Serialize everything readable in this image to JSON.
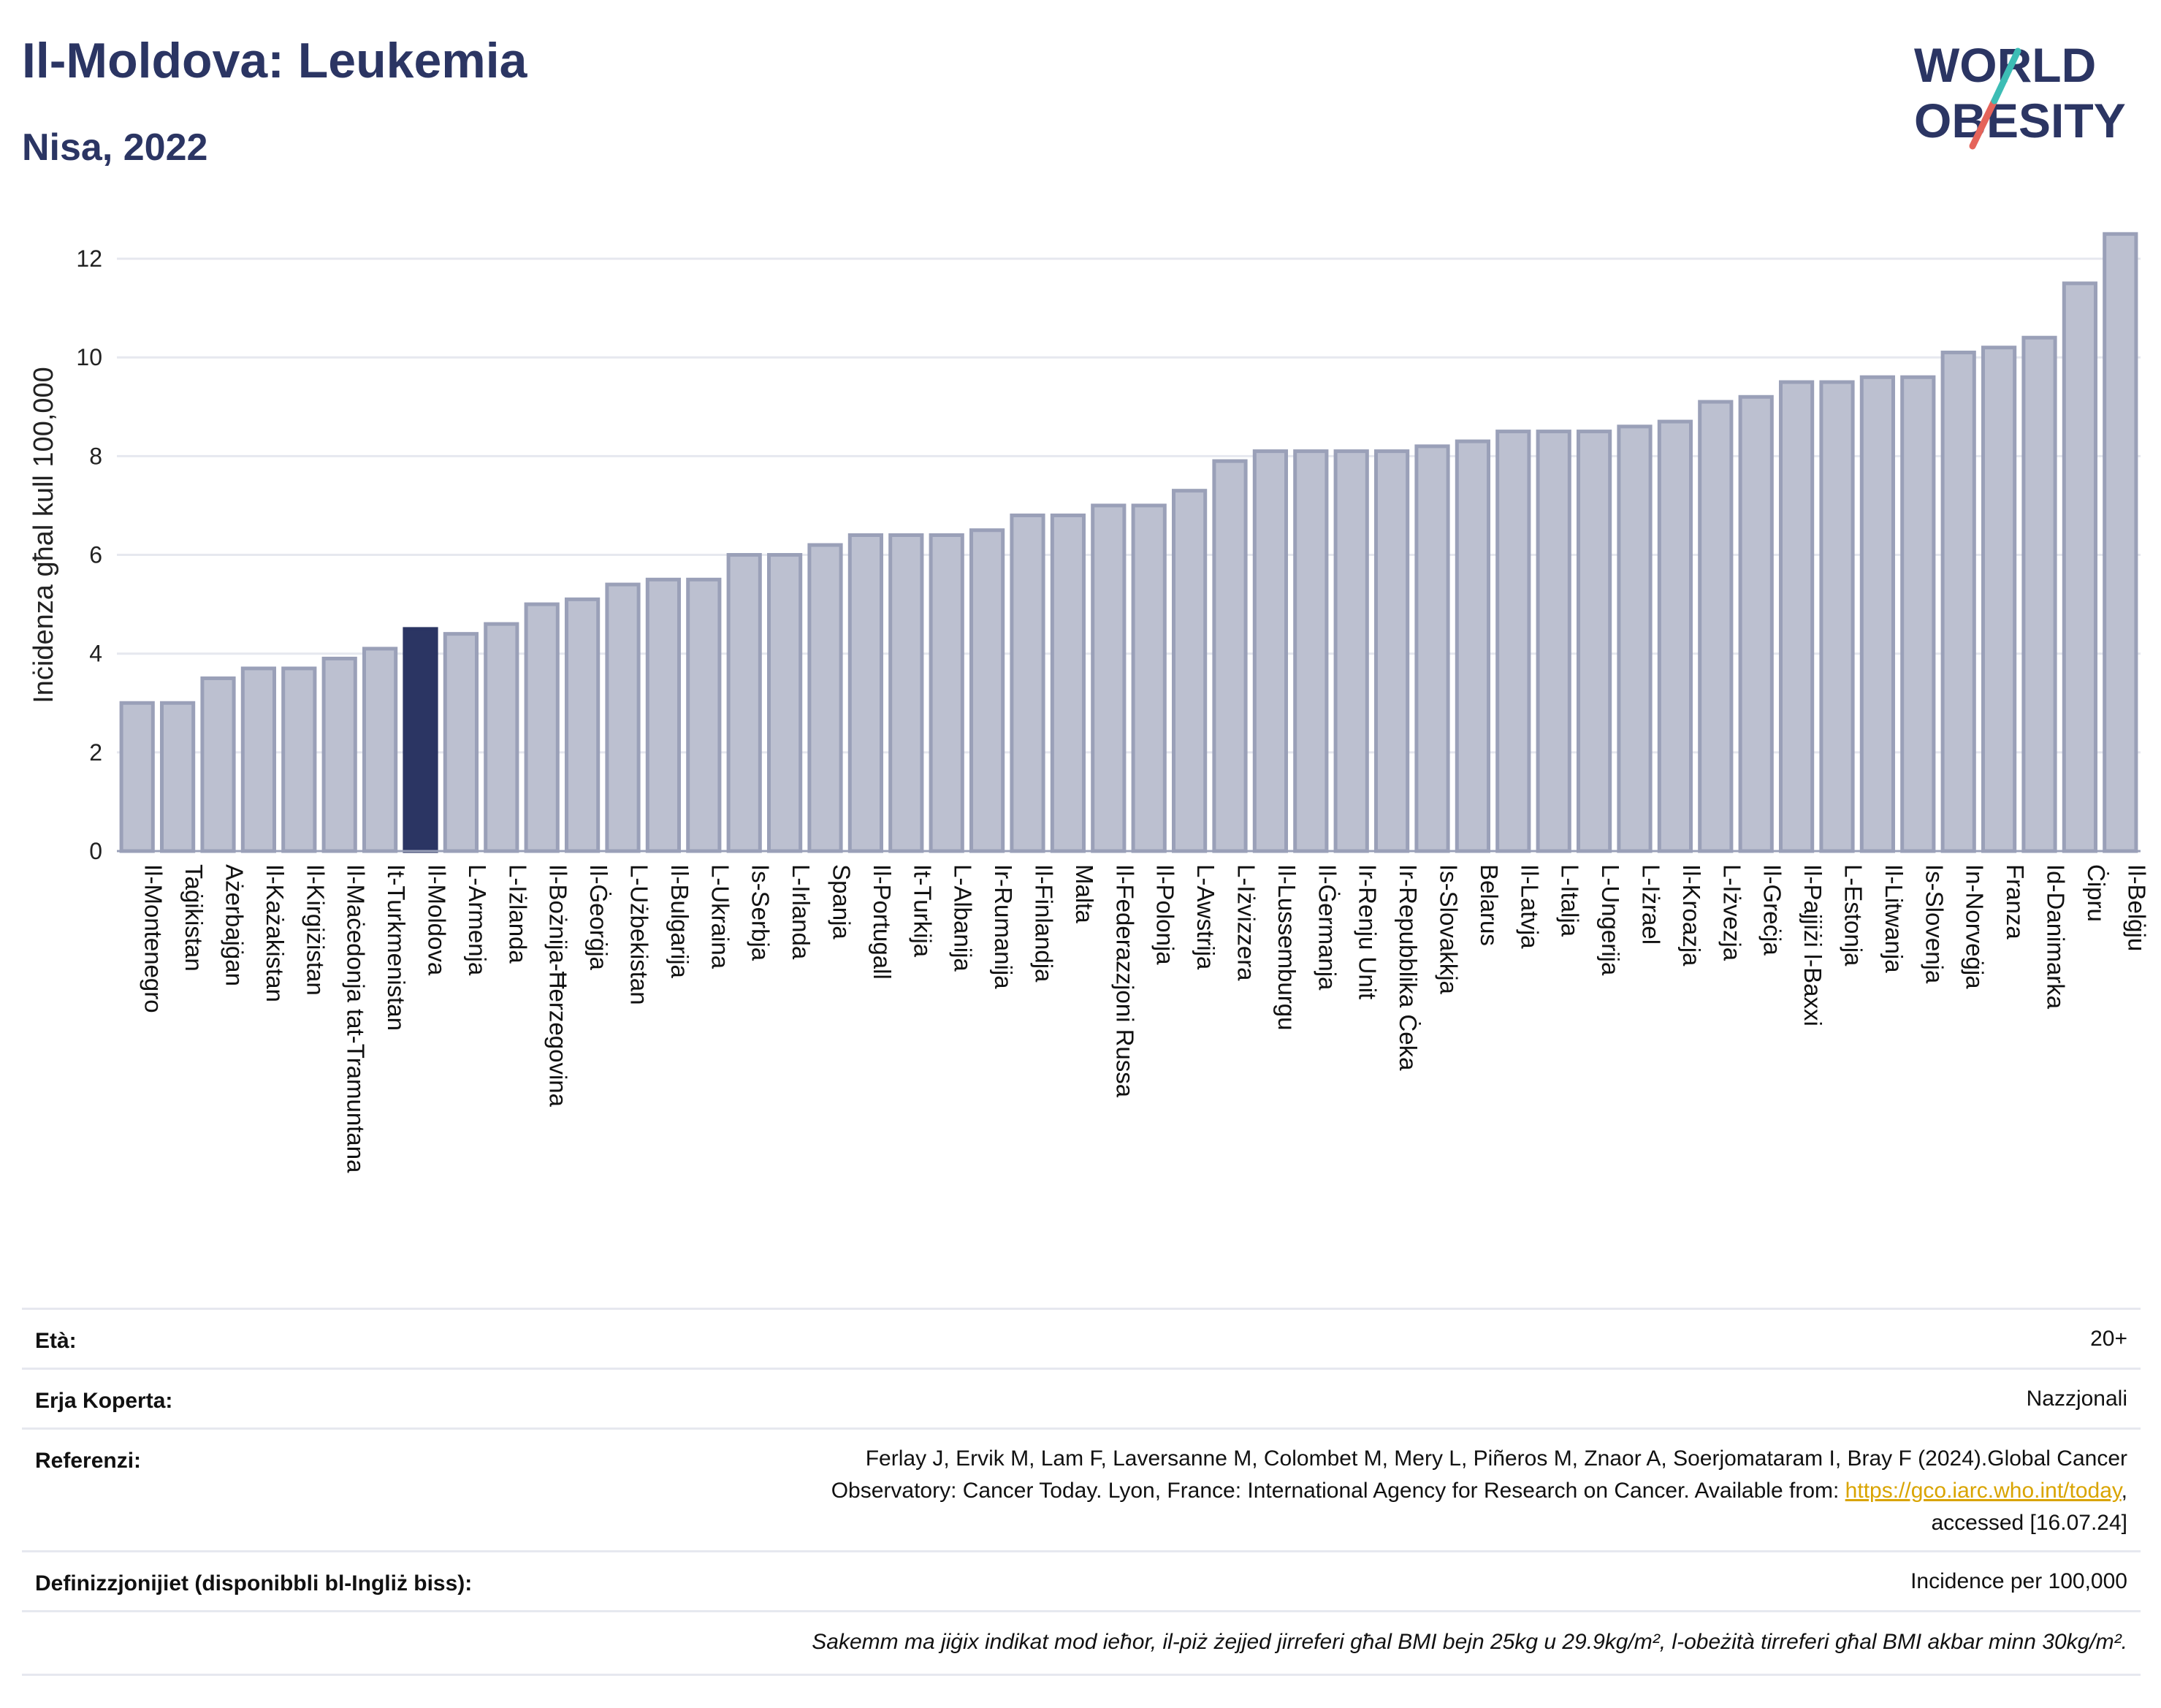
{
  "title": "Il-Moldova: Leukemia",
  "subtitle": "Nisa, 2022",
  "logo": {
    "line1": "WORLD",
    "line2": "OBESITY",
    "accent_colors": [
      "#3dbdb5",
      "#e5645a"
    ]
  },
  "colors": {
    "bar": "#bcc0d0",
    "bar_stroke": "#9aa0b8",
    "highlight": "#2b3563",
    "grid": "#e6e8ef"
  },
  "chart_data": {
    "type": "bar",
    "ylabel": "Inċidenza għal kull 100,000",
    "ylim": [
      0,
      12.8
    ],
    "yticks": [
      0,
      2,
      4,
      6,
      8,
      10,
      12
    ],
    "highlight": "Il-Moldova",
    "categories": [
      "Il-Montenegro",
      "Taġikistan",
      "Ażerbajġan",
      "Il-Każakistan",
      "Il-Kirgiżistan",
      "Il-Maċedonja tat-Tramuntana",
      "It-Turkmenistan",
      "Il-Moldova",
      "L-Armenja",
      "L-Iżlanda",
      "Il-Bożnija-Ħerzegovina",
      "Il-Ġeorġja",
      "L-Użbekistan",
      "Il-Bulgarija",
      "L-Ukraina",
      "Is-Serbja",
      "L-Irlanda",
      "Spanja",
      "Il-Portugall",
      "It-Turkija",
      "L-Albanija",
      "Ir-Rumanija",
      "Il-Finlandja",
      "Malta",
      "Il-Federazzjoni Russa",
      "Il-Polonja",
      "L-Awstrija",
      "L-Iżvizzera",
      "Il-Lussemburgu",
      "Il-Ġermanja",
      "Ir-Renju Unit",
      "Ir-Repubblika Ċeka",
      "Is-Slovakkja",
      "Belarus",
      "Il-Latvja",
      "L-Italja",
      "L-Ungerija",
      "L-Iżrael",
      "Il-Kroazja",
      "L-Iżvezja",
      "Il-Greċja",
      "Il-Pajjiżi l-Baxxi",
      "L-Estonja",
      "Il-Litwanja",
      "Is-Slovenja",
      "In-Norveġja",
      "Franza",
      "Id-Danimarka",
      "Ċipru",
      "Il-Belġju"
    ],
    "values": [
      3.0,
      3.0,
      3.5,
      3.7,
      3.7,
      3.9,
      4.1,
      4.5,
      4.4,
      4.6,
      5.0,
      5.1,
      5.4,
      5.5,
      5.5,
      6.0,
      6.0,
      6.2,
      6.4,
      6.4,
      6.4,
      6.5,
      6.8,
      6.8,
      7.0,
      7.0,
      7.3,
      7.9,
      8.1,
      8.1,
      8.1,
      8.1,
      8.2,
      8.3,
      8.5,
      8.5,
      8.5,
      8.6,
      8.7,
      9.1,
      9.2,
      9.5,
      9.5,
      9.6,
      9.6,
      10.1,
      10.2,
      10.4,
      11.5,
      12.5
    ]
  },
  "info": {
    "age": {
      "label": "Età:",
      "value": "20+"
    },
    "area": {
      "label": "Erja Koperta:",
      "value": "Nazzjonali"
    },
    "references": {
      "label": "Referenzi:",
      "line1": "Ferlay J, Ervik M, Lam F, Laversanne M, Colombet M, Mery L, Piñeros M, Znaor A, Soerjomataram I, Bray F (2024).Global Cancer",
      "line2_pre": "Observatory: Cancer Today. Lyon, France: International Agency for Research on Cancer. Available from: ",
      "link": "https://gco.iarc.who.int/today",
      "line2_post": ",",
      "line3": "accessed [16.07.24]"
    },
    "definitions": {
      "label": "Definizzjonijiet (disponibbli bl-Ingliż biss):",
      "value": "Incidence per 100,000"
    },
    "note": "Sakemm ma jiġix indikat mod ieħor, il-piż żejjed jirreferi għal BMI bejn 25kg u 29.9kg/m², l-obeżità tirreferi għal BMI akbar minn 30kg/m²."
  }
}
